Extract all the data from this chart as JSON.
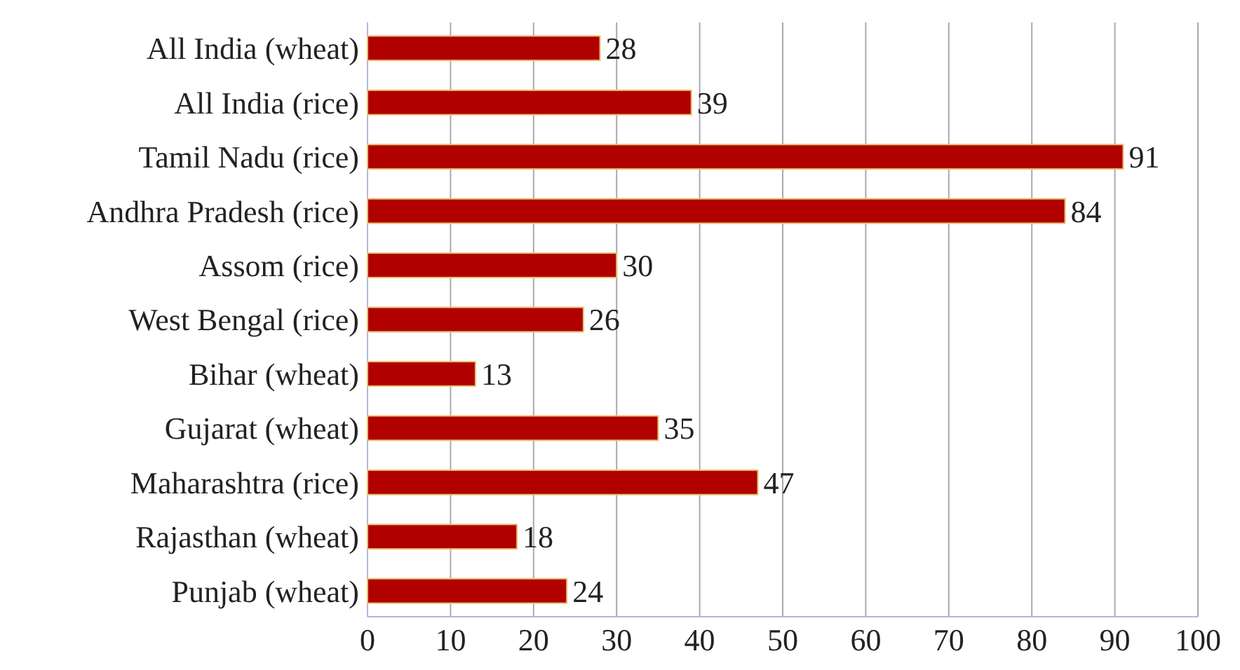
{
  "chart_data": {
    "type": "bar",
    "orientation": "horizontal",
    "categories": [
      "All India (wheat)",
      "All India (rice)",
      "Tamil Nadu (rice)",
      "Andhra Pradesh (rice)",
      "Assom (rice)",
      "West Bengal (rice)",
      "Bihar (wheat)",
      "Gujarat (wheat)",
      "Maharashtra (rice)",
      "Rajasthan (wheat)",
      "Punjab (wheat)"
    ],
    "values": [
      28,
      39,
      91,
      84,
      30,
      26,
      13,
      35,
      47,
      18,
      24
    ],
    "color": "#b00000",
    "xlim": [
      0,
      100
    ],
    "xticks": [
      0,
      10,
      20,
      30,
      40,
      50,
      60,
      70,
      80,
      90,
      100
    ],
    "grid": "x",
    "data_labels": true
  }
}
